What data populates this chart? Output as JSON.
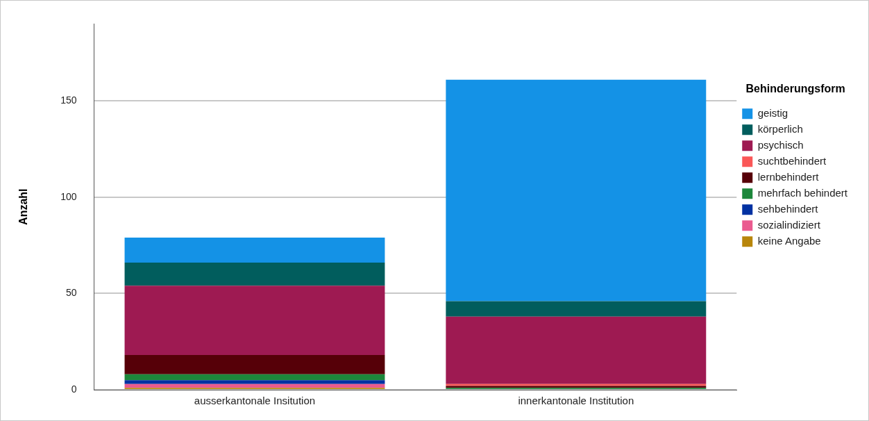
{
  "chart_data": {
    "type": "bar",
    "stacked": true,
    "ylabel": "Anzahl",
    "legend_title": "Behinderungsform",
    "legend": "right",
    "categories": [
      "ausserkantonale Insitution",
      "innerkantonale Institution"
    ],
    "series": [
      {
        "name": "keine Angabe",
        "color": "#b8860b",
        "values": [
          1,
          0
        ]
      },
      {
        "name": "sozialindiziert",
        "color": "#ea5a8f",
        "values": [
          2,
          0
        ]
      },
      {
        "name": "sehbehindert",
        "color": "#0131a2",
        "values": [
          2,
          0
        ]
      },
      {
        "name": "mehrfach behindert",
        "color": "#1c873b",
        "values": [
          3,
          1
        ]
      },
      {
        "name": "lernbehindert",
        "color": "#560008",
        "values": [
          10,
          1
        ]
      },
      {
        "name": "suchtbehindert",
        "color": "#fa5757",
        "values": [
          0,
          1
        ]
      },
      {
        "name": "psychisch",
        "color": "#9e1a52",
        "values": [
          36,
          35
        ]
      },
      {
        "name": "körperlich",
        "color": "#015d5d",
        "values": [
          12,
          8
        ]
      },
      {
        "name": "geistig",
        "color": "#1492e6",
        "values": [
          13,
          115
        ]
      }
    ],
    "ylim": [
      0,
      190
    ],
    "yticks": [
      0,
      50,
      100,
      150
    ],
    "grid": "y"
  }
}
